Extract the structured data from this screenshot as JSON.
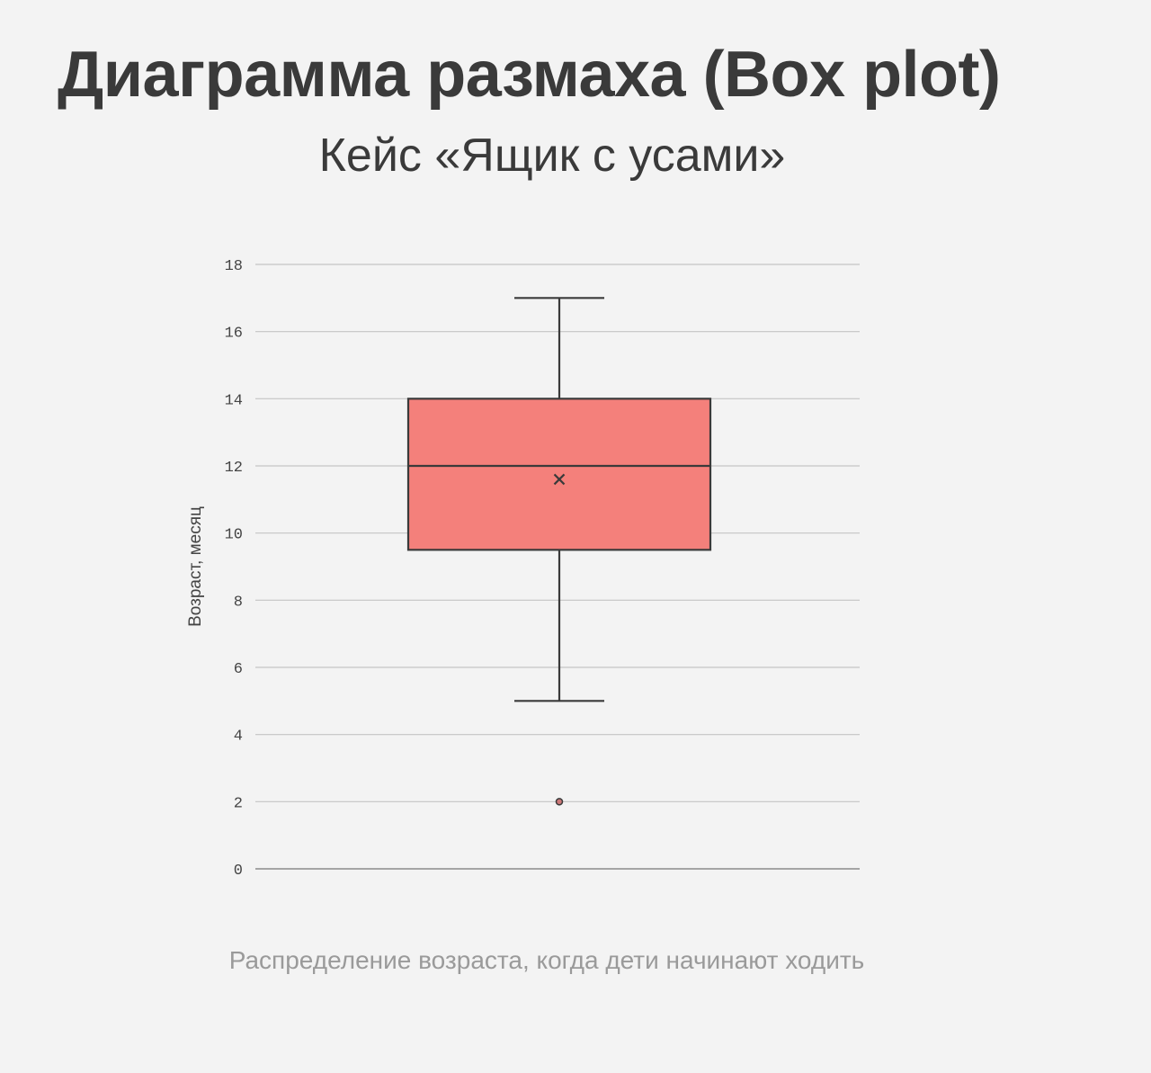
{
  "page": {
    "title": "Диаграмма размаха (Box plot)",
    "subtitle": "Кейс «Ящик с усами»",
    "caption": "Распределение возраста, когда дети начинают ходить"
  },
  "chart_data": {
    "type": "box",
    "ylabel": "Возраст, месяц",
    "xlabel": "",
    "ylim": [
      0,
      18
    ],
    "yticks": [
      0,
      2,
      4,
      6,
      8,
      10,
      12,
      14,
      16,
      18
    ],
    "grid": true,
    "series": [
      {
        "min": 5,
        "q1": 9.5,
        "median": 12,
        "q3": 14,
        "max": 17,
        "mean": 11.6,
        "outliers": [
          2
        ],
        "color": "#f4807b"
      }
    ]
  }
}
